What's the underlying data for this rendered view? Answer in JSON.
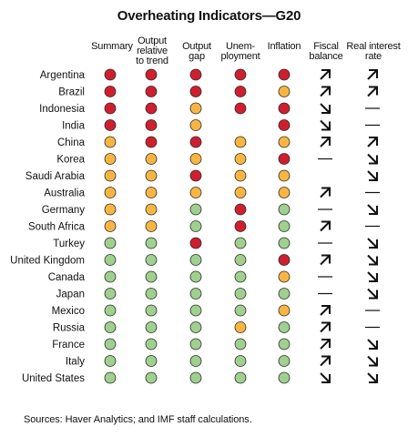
{
  "chart_data": {
    "type": "table",
    "title": "Overheating Indicators—G20",
    "columns": [
      "Summary",
      "Output\nrelative\nto trend",
      "Output\ngap",
      "Unem-\nployment",
      "Inflation",
      "Fiscal\nbalance",
      "Real interest\nrate"
    ],
    "legend_colors": {
      "red": "#cf1f2e",
      "amber": "#f9b542",
      "green": "#9fd08e",
      "outline": "#2a2a2a",
      "arrow": "#111111"
    },
    "rows": [
      {
        "country": "Argentina",
        "indicators": [
          "red",
          "red",
          "red",
          "red",
          "red"
        ],
        "fiscal": "up",
        "interest": "up"
      },
      {
        "country": "Brazil",
        "indicators": [
          "red",
          "red",
          "red",
          "red",
          "amber"
        ],
        "fiscal": "up",
        "interest": "up"
      },
      {
        "country": "Indonesia",
        "indicators": [
          "red",
          "red",
          "amber",
          "red",
          "red"
        ],
        "fiscal": "down",
        "interest": "flat"
      },
      {
        "country": "India",
        "indicators": [
          "red",
          "red",
          "amber",
          "none",
          "red"
        ],
        "fiscal": "down",
        "interest": "flat"
      },
      {
        "country": "China",
        "indicators": [
          "amber",
          "red",
          "red",
          "amber",
          "amber"
        ],
        "fiscal": "up",
        "interest": "up"
      },
      {
        "country": "Korea",
        "indicators": [
          "amber",
          "amber",
          "amber",
          "amber",
          "red"
        ],
        "fiscal": "flat",
        "interest": "down"
      },
      {
        "country": "Saudi Arabia",
        "indicators": [
          "amber",
          "amber",
          "red",
          "amber",
          "amber"
        ],
        "fiscal": "none",
        "interest": "down"
      },
      {
        "country": "Australia",
        "indicators": [
          "amber",
          "amber",
          "amber",
          "amber",
          "amber"
        ],
        "fiscal": "up",
        "interest": "flat"
      },
      {
        "country": "Germany",
        "indicators": [
          "amber",
          "amber",
          "green",
          "red",
          "green"
        ],
        "fiscal": "flat",
        "interest": "down"
      },
      {
        "country": "South Africa",
        "indicators": [
          "amber",
          "amber",
          "green",
          "red",
          "green"
        ],
        "fiscal": "up",
        "interest": "flat"
      },
      {
        "country": "Turkey",
        "indicators": [
          "green",
          "green",
          "red",
          "green",
          "green"
        ],
        "fiscal": "flat",
        "interest": "down"
      },
      {
        "country": "United Kingdom",
        "indicators": [
          "green",
          "green",
          "green",
          "green",
          "red"
        ],
        "fiscal": "up",
        "interest": "down"
      },
      {
        "country": "Canada",
        "indicators": [
          "green",
          "green",
          "green",
          "green",
          "amber"
        ],
        "fiscal": "flat",
        "interest": "down"
      },
      {
        "country": "Japan",
        "indicators": [
          "green",
          "green",
          "green",
          "green",
          "green"
        ],
        "fiscal": "flat",
        "interest": "down"
      },
      {
        "country": "Mexico",
        "indicators": [
          "green",
          "green",
          "green",
          "green",
          "amber"
        ],
        "fiscal": "up",
        "interest": "flat"
      },
      {
        "country": "Russia",
        "indicators": [
          "green",
          "green",
          "green",
          "amber",
          "green"
        ],
        "fiscal": "up",
        "interest": "flat"
      },
      {
        "country": "France",
        "indicators": [
          "green",
          "green",
          "green",
          "green",
          "green"
        ],
        "fiscal": "up",
        "interest": "down"
      },
      {
        "country": "Italy",
        "indicators": [
          "green",
          "green",
          "green",
          "green",
          "green"
        ],
        "fiscal": "up",
        "interest": "down"
      },
      {
        "country": "United States",
        "indicators": [
          "green",
          "green",
          "green",
          "green",
          "green"
        ],
        "fiscal": "down",
        "interest": "down"
      }
    ],
    "source": "Sources: Haver Analytics; and IMF staff calculations."
  }
}
